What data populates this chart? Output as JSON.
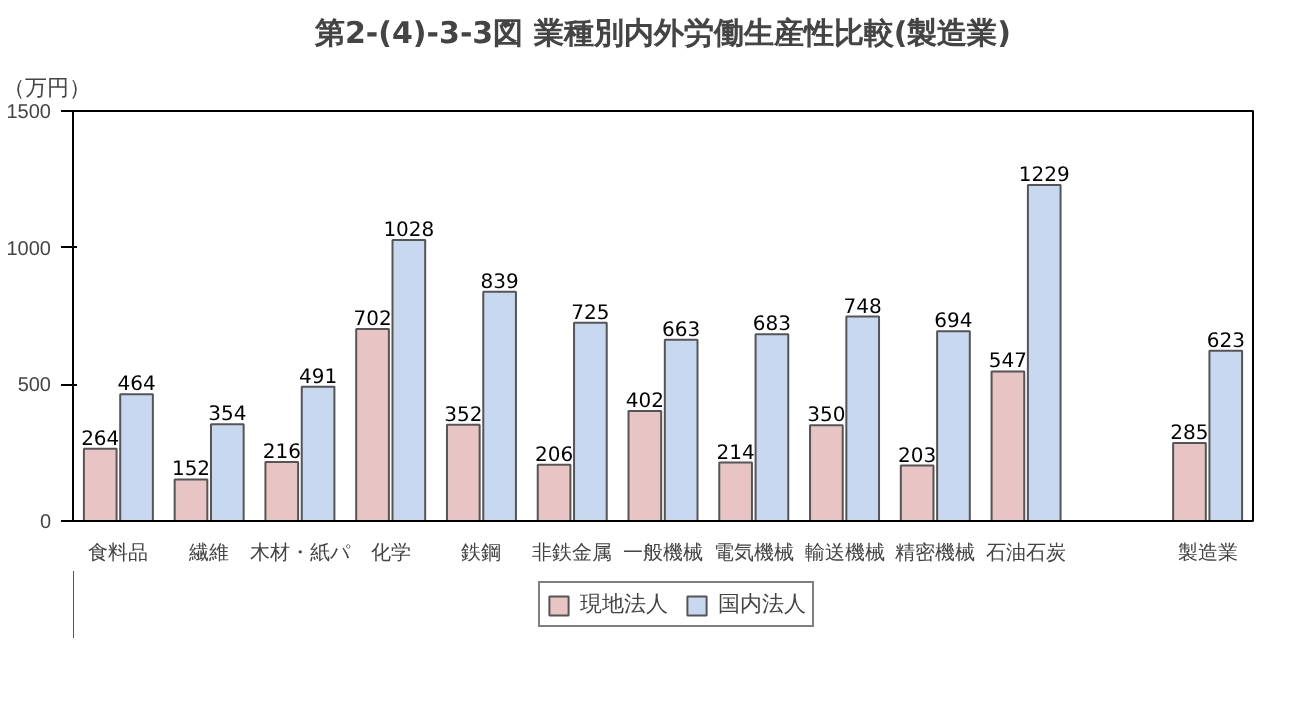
{
  "chart_data": {
    "type": "bar",
    "title": "第2-(4)-3-3図 業種別内外労働生産性比較(製造業)",
    "ylabel": "（万円）",
    "categories": [
      "食料品",
      "繊維",
      "木材・紙パ",
      "化学",
      "鉄鋼",
      "非鉄金属",
      "一般機械",
      "電気機械",
      "輸送機械",
      "精密機械",
      "石油石炭",
      null,
      "製造業"
    ],
    "series": [
      {
        "name": "現地法人",
        "color": "#e8c4c4",
        "values": [
          264,
          152,
          216,
          702,
          352,
          206,
          402,
          214,
          350,
          203,
          547,
          null,
          285
        ]
      },
      {
        "name": "国内法人",
        "color": "#c8d8f0",
        "values": [
          464,
          354,
          491,
          1028,
          839,
          725,
          663,
          683,
          748,
          694,
          1229,
          null,
          623
        ]
      }
    ],
    "ylim": [
      0,
      1500
    ],
    "yticks": [
      0,
      500,
      1000,
      1500
    ],
    "grid": false,
    "legend": "bottom",
    "data_labels": true
  }
}
